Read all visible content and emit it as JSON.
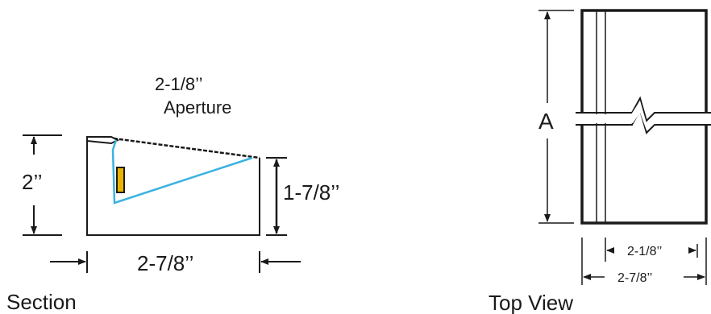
{
  "section_view": {
    "caption": "Section",
    "aperture_label_line1": "2-1/8’’",
    "aperture_label_line2": "Aperture",
    "left_height_label": "2’’",
    "right_height_label": "1-7/8’’",
    "width_label": "2-7/8’’"
  },
  "top_view": {
    "caption": "Top View",
    "length_label": "A",
    "aperture_width_label": "2-1/8’’",
    "overall_width_label": "2-7/8’’"
  },
  "colors": {
    "line": "#1a1a1a",
    "reflector": "#3bb3e0",
    "lamp": "#e8b400"
  }
}
